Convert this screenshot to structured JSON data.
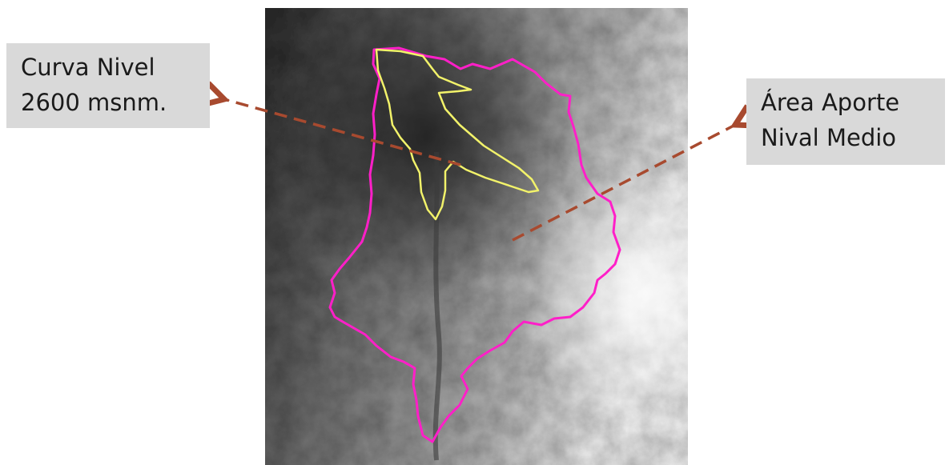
{
  "labels": {
    "left": {
      "line1": "Curva Nivel",
      "line2": "2600 msnm."
    },
    "right": {
      "line1": "Área Aporte",
      "line2": "Nival Medio"
    }
  },
  "colors": {
    "page_background": "#ffffff",
    "label_background": "#d9d9d9",
    "basin_outline": "#ff1fc8",
    "contour_outline": "#f2f26a",
    "arrow": "#a84a2f"
  },
  "map": {
    "type": "grayscale-elevation-raster",
    "shading": "dark-lowlands-to-light-highlands"
  }
}
